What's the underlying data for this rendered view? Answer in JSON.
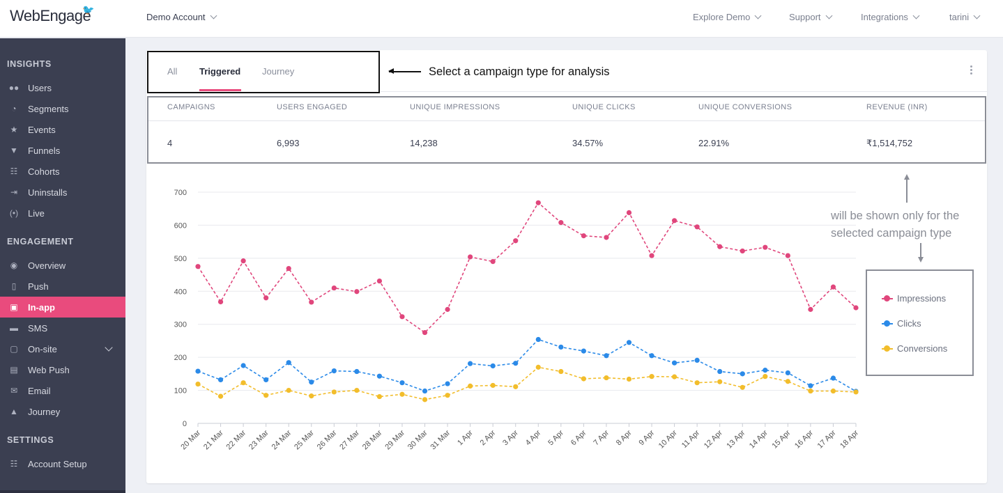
{
  "app": {
    "logo_text": "WebEngage"
  },
  "topbar": {
    "account": "Demo Account",
    "nav": [
      "Explore Demo",
      "Support",
      "Integrations",
      "tarini"
    ]
  },
  "sidebar": {
    "sections": [
      {
        "title": "INSIGHTS",
        "items": [
          {
            "label": "Users",
            "icon": "users-icon"
          },
          {
            "label": "Segments",
            "icon": "pie-icon"
          },
          {
            "label": "Events",
            "icon": "star-icon"
          },
          {
            "label": "Funnels",
            "icon": "funnel-icon"
          },
          {
            "label": "Cohorts",
            "icon": "grid-icon"
          },
          {
            "label": "Uninstalls",
            "icon": "exit-icon"
          },
          {
            "label": "Live",
            "icon": "broadcast-icon"
          }
        ]
      },
      {
        "title": "ENGAGEMENT",
        "items": [
          {
            "label": "Overview",
            "icon": "eye-icon"
          },
          {
            "label": "Push",
            "icon": "mobile-icon"
          },
          {
            "label": "In-app",
            "icon": "inapp-icon",
            "active": true
          },
          {
            "label": "SMS",
            "icon": "chat-icon"
          },
          {
            "label": "On-site",
            "icon": "onsite-icon",
            "expandable": true
          },
          {
            "label": "Web Push",
            "icon": "window-icon"
          },
          {
            "label": "Email",
            "icon": "mail-icon"
          },
          {
            "label": "Journey",
            "icon": "rocket-icon"
          }
        ]
      },
      {
        "title": "SETTINGS",
        "items": [
          {
            "label": "Account Setup",
            "icon": "grid-icon"
          }
        ]
      }
    ]
  },
  "tabs": {
    "items": [
      "All",
      "Triggered",
      "Journey"
    ],
    "selected": "Triggered"
  },
  "annotations": {
    "tabs_note": "Select a campaign type for analysis",
    "stats_note": "will be shown only for the selected campaign type"
  },
  "stats": {
    "headers": [
      "CAMPAIGNS",
      "USERS ENGAGED",
      "UNIQUE IMPRESSIONS",
      "UNIQUE CLICKS",
      "UNIQUE CONVERSIONS",
      "REVENUE (INR)"
    ],
    "values": [
      "4",
      "6,993",
      "14,238",
      "34.57%",
      "22.91%",
      "₹1,514,752"
    ]
  },
  "chart_data": {
    "type": "line",
    "x": [
      "20 Mar",
      "21 Mar",
      "22 Mar",
      "23 Mar",
      "24 Mar",
      "25 Mar",
      "26 Mar",
      "27 Mar",
      "28 Mar",
      "29 Mar",
      "30 Mar",
      "31 Mar",
      "1 Apr",
      "2 Apr",
      "3 Apr",
      "4 Apr",
      "5 Apr",
      "6 Apr",
      "7 Apr",
      "8 Apr",
      "9 Apr",
      "10 Apr",
      "11 Apr",
      "12 Apr",
      "13 Apr",
      "14 Apr",
      "15 Apr",
      "16 Apr",
      "17 Apr",
      "18 Apr"
    ],
    "ylim": [
      0,
      700
    ],
    "yticks": [
      0,
      100,
      200,
      300,
      400,
      500,
      600,
      700
    ],
    "grid": true,
    "legend": "right",
    "series": [
      {
        "name": "Impressions",
        "color": "#e0467c",
        "values": [
          475,
          368,
          492,
          380,
          469,
          367,
          410,
          399,
          431,
          323,
          275,
          345,
          504,
          490,
          553,
          668,
          608,
          568,
          563,
          638,
          508,
          614,
          595,
          535,
          522,
          533,
          508,
          345,
          413,
          350
        ]
      },
      {
        "name": "Clicks",
        "color": "#2b8ae8",
        "values": [
          158,
          132,
          175,
          132,
          184,
          125,
          159,
          157,
          143,
          123,
          98,
          120,
          181,
          174,
          182,
          254,
          231,
          219,
          205,
          245,
          205,
          183,
          191,
          157,
          150,
          161,
          153,
          114,
          137,
          97
        ]
      },
      {
        "name": "Conversions",
        "color": "#f2bd2b",
        "values": [
          119,
          82,
          123,
          85,
          100,
          83,
          95,
          100,
          81,
          88,
          72,
          85,
          113,
          115,
          111,
          170,
          157,
          135,
          138,
          134,
          142,
          141,
          123,
          126,
          109,
          142,
          127,
          98,
          98,
          95
        ]
      }
    ]
  }
}
